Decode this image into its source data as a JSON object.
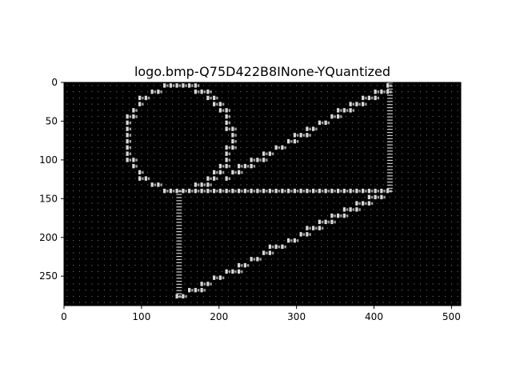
{
  "chart_data": {
    "type": "heatmap",
    "title": "logo.bmp-Q75D422B8INone-YQuantized",
    "xlabel": "",
    "ylabel": "",
    "xlim": [
      0,
      512
    ],
    "ylim": [
      288,
      0
    ],
    "x_ticks": [
      0,
      100,
      200,
      300,
      400,
      500
    ],
    "y_ticks": [
      0,
      50,
      100,
      150,
      200,
      250
    ],
    "grid": false,
    "colormap": "gray",
    "background_color": "#000000",
    "block_size": 8,
    "shapes": {
      "ring": {
        "center": [
          150,
          72
        ],
        "radius_x": 67,
        "radius_y": 68
      },
      "upper_diagonal": {
        "from": [
          215,
          120
        ],
        "to": [
          420,
          6
        ]
      },
      "right_vertical": {
        "x": 420,
        "y_range": [
          0,
          140
        ]
      },
      "horizontal_bar": {
        "from": [
          145,
          140
        ],
        "to": [
          420,
          140
        ]
      },
      "lower_diagonal": {
        "from": [
          420,
          140
        ],
        "to": [
          150,
          278
        ]
      },
      "left_vertical": {
        "x": 148,
        "y_range": [
          140,
          278
        ]
      }
    }
  }
}
